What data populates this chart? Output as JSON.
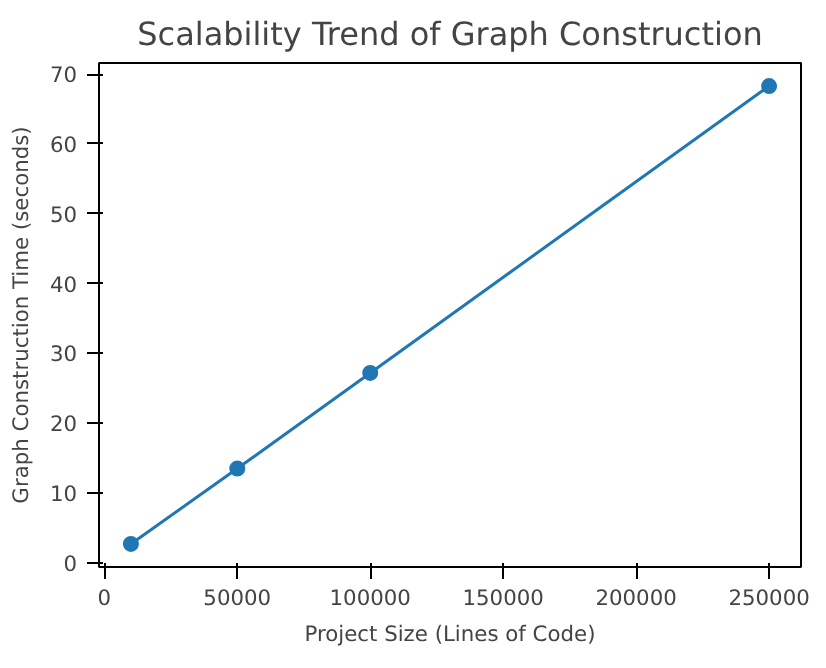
{
  "chart_data": {
    "type": "line",
    "title": "Scalability Trend of Graph Construction",
    "xlabel": "Project Size (Lines of Code)",
    "ylabel": "Graph Construction Time (seconds)",
    "x": [
      10000,
      50000,
      100000,
      250000
    ],
    "series": [
      {
        "color": "#1f77b4",
        "values": [
          2.7,
          13.5,
          27.2,
          68.3
        ]
      }
    ],
    "xlim": [
      -2000,
      262000
    ],
    "ylim": [
      -0.6,
      71.6
    ],
    "xticks": [
      0,
      50000,
      100000,
      150000,
      200000,
      250000
    ],
    "yticks": [
      0,
      10,
      20,
      30,
      40,
      50,
      60,
      70
    ],
    "grid": false,
    "marker": "circle",
    "line_style": "solid"
  }
}
